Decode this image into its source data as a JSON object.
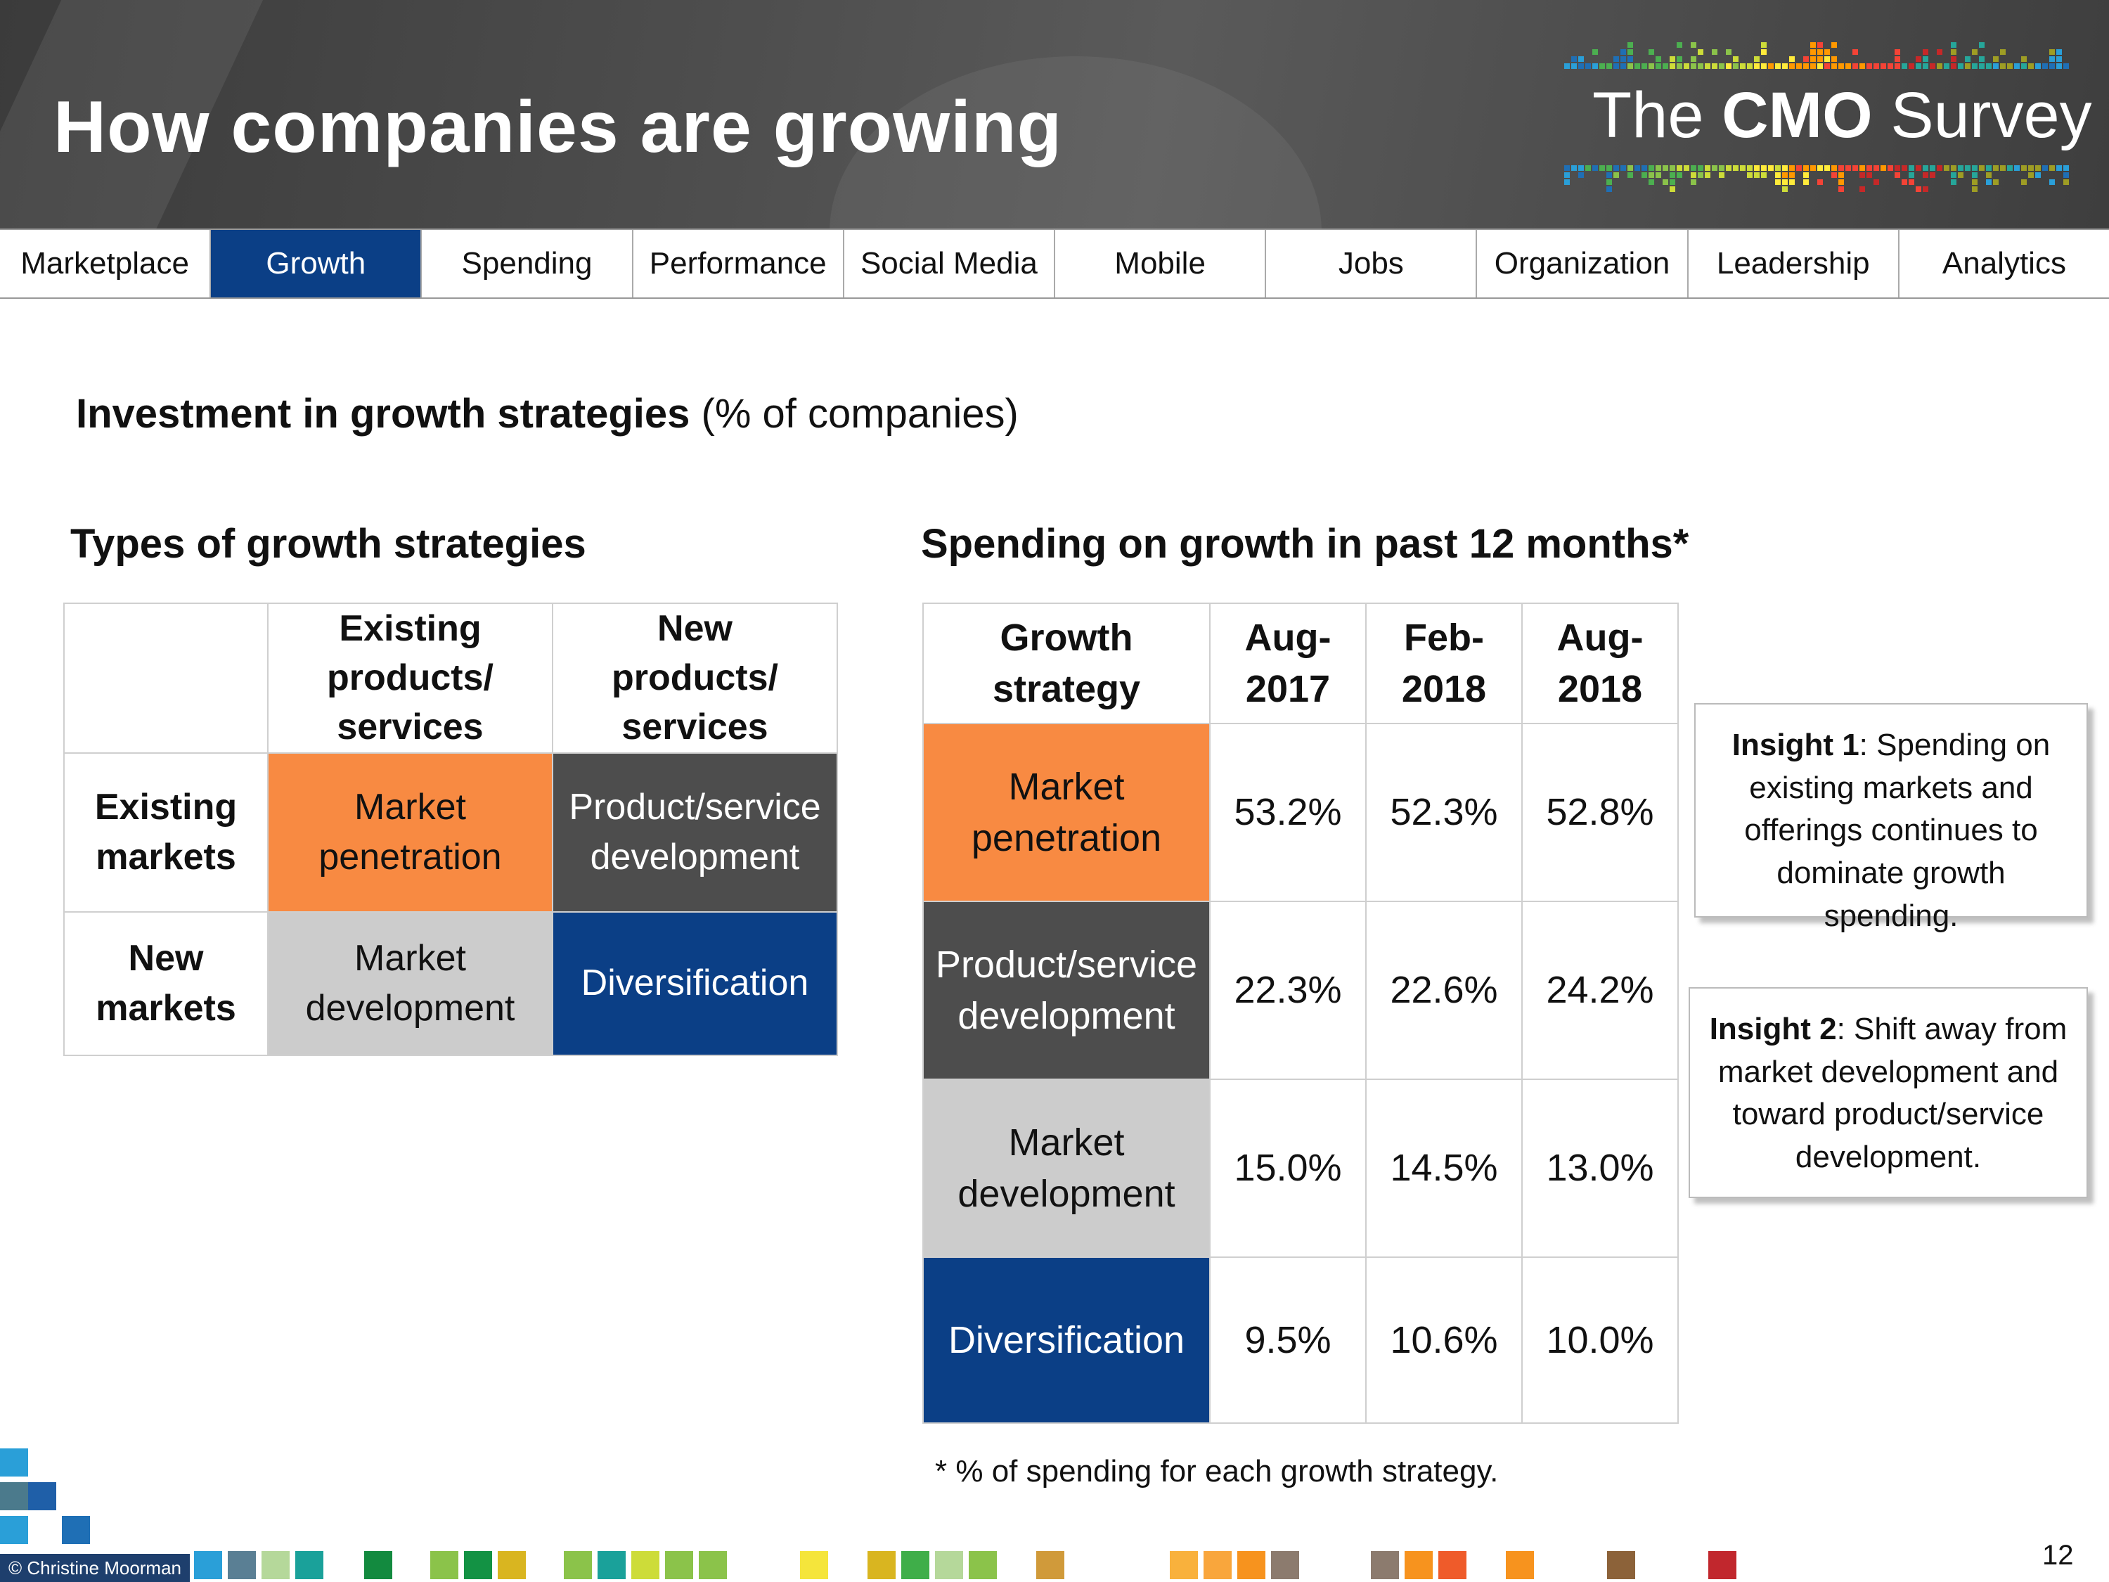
{
  "header": {
    "title": "How companies are growing",
    "logo": {
      "prefix": "The ",
      "bold": "CMO",
      "suffix": " Survey"
    }
  },
  "nav": {
    "items": [
      "Marketplace",
      "Growth",
      "Spending",
      "Performance",
      "Social Media",
      "Mobile",
      "Jobs",
      "Organization",
      "Leadership",
      "Analytics"
    ],
    "active": "Growth"
  },
  "heading": {
    "bold": "Investment in growth strategies",
    "normal": " (% of companies)"
  },
  "types_section": {
    "title": "Types of growth strategies",
    "col_headers": [
      [
        "Existing",
        "products/",
        "services"
      ],
      [
        "New",
        "products/",
        "services"
      ]
    ],
    "rows": [
      {
        "label": [
          "Existing",
          "markets"
        ],
        "cells": [
          [
            "Market",
            "penetration"
          ],
          [
            "Product/service",
            "development"
          ]
        ]
      },
      {
        "label": [
          "New",
          "markets"
        ],
        "cells": [
          [
            "Market",
            "development"
          ],
          [
            "Diversification"
          ]
        ]
      }
    ]
  },
  "spending_section": {
    "title": "Spending on growth in past 12 months*",
    "headers": [
      [
        "Growth",
        "strategy"
      ],
      [
        "Aug-",
        "2017"
      ],
      [
        "Feb-",
        "2018"
      ],
      [
        "Aug-",
        "2018"
      ]
    ],
    "rows": [
      {
        "strategy": [
          "Market",
          "penetration"
        ],
        "values": [
          "53.2%",
          "52.3%",
          "52.8%"
        ]
      },
      {
        "strategy": [
          "Product/service",
          "development"
        ],
        "values": [
          "22.3%",
          "22.6%",
          "24.2%"
        ]
      },
      {
        "strategy": [
          "Market",
          "development"
        ],
        "values": [
          "15.0%",
          "14.5%",
          "13.0%"
        ]
      },
      {
        "strategy": [
          "Diversification"
        ],
        "values": [
          "9.5%",
          "10.6%",
          "10.0%"
        ]
      }
    ],
    "footnote": "* % of spending for each growth strategy."
  },
  "insights": [
    {
      "label": "Insight 1",
      "text": ": Spending on existing markets and offerings continues to dominate growth spending."
    },
    {
      "label": "Insight 2",
      "text": ": Shift away from market development and toward product/service development."
    }
  ],
  "footer": {
    "credit": "© Christine Moorman",
    "page": "12"
  },
  "colors": {
    "nav_active": "#0b3f86",
    "market_penetration": "#f88a42",
    "product_service_development": "#4d4d4d",
    "market_development": "#cccccc",
    "diversification": "#0b3f86"
  }
}
